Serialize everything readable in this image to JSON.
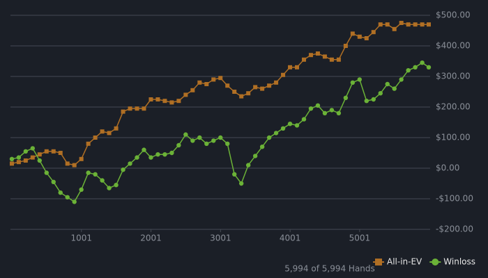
{
  "chart_data": {
    "type": "line",
    "x": [
      1,
      100,
      200,
      300,
      400,
      500,
      600,
      700,
      800,
      900,
      1000,
      1100,
      1200,
      1300,
      1400,
      1500,
      1600,
      1700,
      1800,
      1900,
      2000,
      2100,
      2200,
      2300,
      2400,
      2500,
      2600,
      2700,
      2800,
      2900,
      3000,
      3100,
      3200,
      3300,
      3400,
      3500,
      3600,
      3700,
      3800,
      3900,
      4000,
      4100,
      4200,
      4300,
      4400,
      4500,
      4600,
      4700,
      4800,
      4900,
      5000,
      5100,
      5200,
      5300,
      5400,
      5500,
      5600,
      5700,
      5800,
      5900,
      5994
    ],
    "series": [
      {
        "name": "All-in-EV",
        "color": "#b06f24",
        "marker": "square",
        "values": [
          15,
          20,
          25,
          35,
          45,
          55,
          55,
          50,
          15,
          10,
          30,
          80,
          100,
          120,
          115,
          130,
          185,
          195,
          195,
          195,
          225,
          225,
          220,
          215,
          220,
          240,
          255,
          280,
          275,
          290,
          295,
          270,
          250,
          235,
          245,
          265,
          260,
          270,
          280,
          305,
          330,
          330,
          355,
          370,
          375,
          365,
          355,
          355,
          400,
          440,
          430,
          425,
          445,
          470,
          470,
          455,
          475,
          470,
          470,
          470,
          470
        ]
      },
      {
        "name": "Winloss",
        "color": "#6bb237",
        "marker": "circle",
        "values": [
          30,
          35,
          55,
          65,
          25,
          -15,
          -45,
          -80,
          -95,
          -110,
          -70,
          -15,
          -20,
          -40,
          -65,
          -55,
          -5,
          15,
          35,
          60,
          35,
          45,
          45,
          50,
          75,
          110,
          90,
          100,
          80,
          90,
          100,
          80,
          -20,
          -50,
          10,
          40,
          70,
          100,
          115,
          130,
          145,
          140,
          160,
          195,
          205,
          180,
          190,
          180,
          230,
          280,
          290,
          220,
          225,
          245,
          275,
          260,
          290,
          320,
          330,
          345,
          330
        ]
      }
    ],
    "xlim": [
      1,
      5994
    ],
    "xticks": [
      1001,
      2001,
      3001,
      4001,
      5001
    ],
    "ylim": [
      -200,
      500
    ],
    "yticks": [
      {
        "value": -200,
        "label": "-$200.00"
      },
      {
        "value": -100,
        "label": "-$100.00"
      },
      {
        "value": 0,
        "label": "$0.00"
      },
      {
        "value": 100,
        "label": "$100.00"
      },
      {
        "value": 200,
        "label": "$200.00"
      },
      {
        "value": 300,
        "label": "$300.00"
      },
      {
        "value": 400,
        "label": "$400.00"
      },
      {
        "value": 500,
        "label": "$500.00"
      }
    ],
    "grid": true,
    "legend": "bottom-right",
    "footer": "5,994 of 5,994 Hands"
  }
}
